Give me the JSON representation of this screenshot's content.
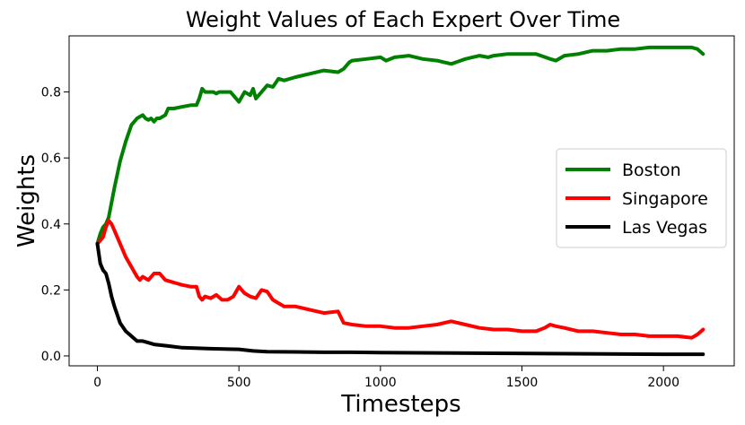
{
  "chart_data": {
    "type": "line",
    "title": "Weight Values of Each Expert Over Time",
    "xlabel": "Timesteps",
    "ylabel": "Weights",
    "xlim": [
      -100,
      2250
    ],
    "ylim": [
      -0.03,
      0.97
    ],
    "xticks": [
      0,
      500,
      1000,
      1500,
      2000
    ],
    "xtick_labels": [
      "0",
      "500",
      "1000",
      "1500",
      "2000"
    ],
    "yticks": [
      0.0,
      0.2,
      0.4,
      0.6,
      0.8
    ],
    "ytick_labels": [
      "0.0",
      "0.2",
      "0.4",
      "0.6",
      "0.8"
    ],
    "grid": false,
    "legend_position": "center-right",
    "series": [
      {
        "name": "Boston",
        "color": "#008000",
        "x": [
          0,
          10,
          20,
          30,
          40,
          60,
          80,
          100,
          120,
          140,
          160,
          170,
          180,
          190,
          200,
          210,
          220,
          240,
          250,
          270,
          300,
          330,
          350,
          360,
          370,
          380,
          390,
          400,
          410,
          420,
          430,
          440,
          450,
          470,
          480,
          490,
          500,
          510,
          520,
          540,
          550,
          560,
          570,
          580,
          600,
          620,
          640,
          660,
          700,
          750,
          800,
          850,
          870,
          880,
          890,
          900,
          950,
          1000,
          1020,
          1050,
          1100,
          1150,
          1200,
          1250,
          1300,
          1350,
          1380,
          1400,
          1450,
          1500,
          1550,
          1600,
          1620,
          1650,
          1700,
          1750,
          1800,
          1850,
          1900,
          1950,
          2000,
          2050,
          2100,
          2120,
          2140
        ],
        "y": [
          0.34,
          0.37,
          0.39,
          0.4,
          0.42,
          0.51,
          0.59,
          0.65,
          0.7,
          0.72,
          0.73,
          0.72,
          0.715,
          0.72,
          0.71,
          0.72,
          0.72,
          0.73,
          0.75,
          0.75,
          0.755,
          0.76,
          0.76,
          0.78,
          0.81,
          0.8,
          0.8,
          0.8,
          0.8,
          0.795,
          0.8,
          0.8,
          0.8,
          0.8,
          0.79,
          0.78,
          0.77,
          0.785,
          0.8,
          0.79,
          0.81,
          0.78,
          0.79,
          0.8,
          0.82,
          0.815,
          0.84,
          0.835,
          0.845,
          0.855,
          0.865,
          0.86,
          0.87,
          0.88,
          0.89,
          0.895,
          0.9,
          0.905,
          0.895,
          0.905,
          0.91,
          0.9,
          0.895,
          0.885,
          0.9,
          0.91,
          0.905,
          0.91,
          0.915,
          0.915,
          0.915,
          0.9,
          0.895,
          0.91,
          0.915,
          0.925,
          0.925,
          0.93,
          0.93,
          0.935,
          0.935,
          0.935,
          0.935,
          0.93,
          0.915
        ]
      },
      {
        "name": "Singapore",
        "color": "#ff0000",
        "x": [
          0,
          10,
          20,
          30,
          40,
          50,
          60,
          80,
          100,
          120,
          140,
          150,
          160,
          180,
          200,
          220,
          240,
          260,
          280,
          300,
          330,
          350,
          360,
          370,
          380,
          400,
          420,
          440,
          460,
          480,
          500,
          510,
          520,
          540,
          560,
          580,
          600,
          620,
          640,
          660,
          700,
          750,
          800,
          850,
          870,
          900,
          950,
          1000,
          1050,
          1100,
          1150,
          1200,
          1250,
          1300,
          1350,
          1400,
          1450,
          1500,
          1550,
          1580,
          1600,
          1620,
          1650,
          1700,
          1750,
          1800,
          1850,
          1900,
          1950,
          2000,
          2050,
          2100,
          2120,
          2140
        ],
        "y": [
          0.34,
          0.35,
          0.36,
          0.39,
          0.41,
          0.4,
          0.38,
          0.34,
          0.3,
          0.27,
          0.24,
          0.23,
          0.24,
          0.23,
          0.25,
          0.25,
          0.23,
          0.225,
          0.22,
          0.215,
          0.21,
          0.21,
          0.18,
          0.17,
          0.18,
          0.175,
          0.185,
          0.17,
          0.17,
          0.18,
          0.21,
          0.2,
          0.19,
          0.18,
          0.175,
          0.2,
          0.195,
          0.17,
          0.16,
          0.15,
          0.15,
          0.14,
          0.13,
          0.135,
          0.1,
          0.095,
          0.09,
          0.09,
          0.085,
          0.085,
          0.09,
          0.095,
          0.105,
          0.095,
          0.085,
          0.08,
          0.08,
          0.075,
          0.075,
          0.085,
          0.095,
          0.09,
          0.085,
          0.075,
          0.075,
          0.07,
          0.065,
          0.065,
          0.06,
          0.06,
          0.06,
          0.055,
          0.065,
          0.08
        ]
      },
      {
        "name": "Las Vegas",
        "color": "#000000",
        "x": [
          0,
          5,
          10,
          20,
          30,
          40,
          50,
          60,
          80,
          100,
          120,
          140,
          160,
          180,
          200,
          250,
          300,
          400,
          500,
          550,
          600,
          700,
          800,
          900,
          1000,
          1200,
          1400,
          1600,
          1800,
          2000,
          2140
        ],
        "y": [
          0.34,
          0.31,
          0.28,
          0.26,
          0.25,
          0.22,
          0.18,
          0.15,
          0.1,
          0.075,
          0.06,
          0.045,
          0.045,
          0.04,
          0.035,
          0.03,
          0.025,
          0.022,
          0.02,
          0.015,
          0.013,
          0.012,
          0.011,
          0.011,
          0.01,
          0.009,
          0.008,
          0.007,
          0.006,
          0.005,
          0.005
        ]
      }
    ]
  }
}
